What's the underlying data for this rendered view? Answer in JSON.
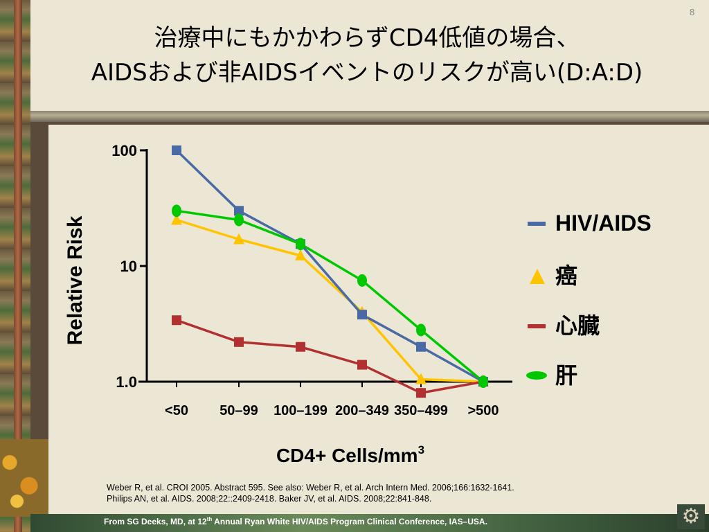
{
  "slide": {
    "page_number": "8",
    "title_line1": "治療中にもかかわらずCD4低値の場合、",
    "title_line2": "AIDSおよび非AIDSイベントのリスクが高い(D:A:D)",
    "references": [
      "Weber R, et al. CROI 2005. Abstract 595.  See also: Weber R, et al. Arch Intern Med. 2006;166:1632-1641.",
      "Philips AN, et al. AIDS. 2008;22::2409-2418.  Baker JV, et al. AIDS. 2008;22:841-848."
    ],
    "footer_pre": "From SG Deeks, MD,  at 12",
    "footer_sup": "th",
    "footer_post": " Annual Ryan White HIV/AIDS Program Clinical Conference, IAS–USA.",
    "gear_icon": "gear-icon"
  },
  "chart_data": {
    "type": "line",
    "y_scale": "log",
    "ylim": [
      1.0,
      100
    ],
    "ylabel": "Relative Risk",
    "xlabel": "CD4+ Cells/mm",
    "xlabel_sup": "3",
    "y_ticks": [
      {
        "value": 100,
        "label": "100"
      },
      {
        "value": 10,
        "label": "10"
      },
      {
        "value": 1,
        "label": "1.0"
      }
    ],
    "categories": [
      "<50",
      "50–99",
      "100–199",
      "200–349",
      "350–499",
      ">500"
    ],
    "legend_position": "right",
    "grid": false,
    "series": [
      {
        "name": "HIV/AIDS",
        "color": "#4a6aa6",
        "marker": "square",
        "values": [
          100,
          30,
          15.5,
          3.8,
          2.0,
          1.0
        ]
      },
      {
        "name": "癌",
        "color": "#ffc400",
        "marker": "triangle",
        "values": [
          25,
          17,
          12.3,
          4.0,
          1.05,
          1.0
        ]
      },
      {
        "name": "心臓",
        "color": "#b33030",
        "marker": "square",
        "values": [
          3.4,
          2.2,
          2.0,
          1.4,
          0.8,
          1.0
        ]
      },
      {
        "name": "肝",
        "color": "#00c800",
        "marker": "circle",
        "values": [
          30,
          25,
          15.5,
          7.5,
          2.8,
          1.0
        ]
      }
    ]
  }
}
